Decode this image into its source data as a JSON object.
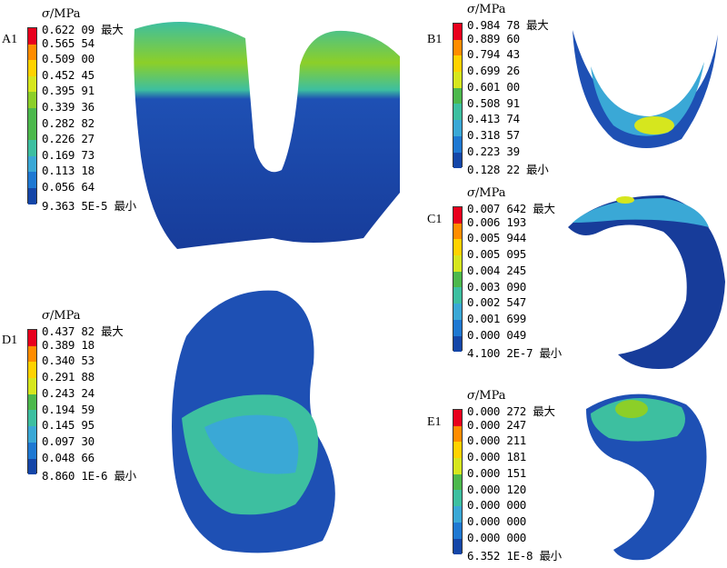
{
  "legend_title": {
    "symbol": "σ",
    "unit": "/MPa"
  },
  "colors": [
    "#e8001c",
    "#ff8c00",
    "#ffd200",
    "#d6e61e",
    "#8ccf28",
    "#4cb84c",
    "#3dbfa0",
    "#3aa8d6",
    "#1e78d2",
    "#1446a8"
  ],
  "panels": [
    {
      "label": "A1",
      "values": [
        "0.622 09 最大",
        "0.565 54",
        "0.509 00",
        "0.452 45",
        "0.395 91",
        "0.339 36",
        "0.282 82",
        "0.226 27",
        "0.169 73",
        "0.113 18",
        "0.056 64",
        "9.363 5E-5 最小"
      ]
    },
    {
      "label": "B1",
      "values": [
        "0.984 78 最大",
        "0.889 60",
        "0.794 43",
        "0.699 26",
        "0.601 00",
        "0.508 91",
        "0.413 74",
        "0.318 57",
        "0.223 39",
        "0.128 22 最小"
      ]
    },
    {
      "label": "C1",
      "values": [
        "0.007 642 最大",
        "0.006 193",
        "0.005 944",
        "0.005 095",
        "0.004 245",
        "0.003 090",
        "0.002 547",
        "0.001 699",
        "0.000 049",
        "4.100 2E-7 最小"
      ]
    },
    {
      "label": "D1",
      "values": [
        "0.437 82 最大",
        "0.389 18",
        "0.340 53",
        "0.291 88",
        "0.243 24",
        "0.194 59",
        "0.145 95",
        "0.097 30",
        "0.048 66",
        "8.860 1E-6 最小"
      ]
    },
    {
      "label": "E1",
      "values": [
        "0.000 272 最大",
        "0.000 247",
        "0.000 211",
        "0.000 181",
        "0.000 151",
        "0.000 120",
        "0.000 000",
        "0.000 000",
        "0.000 000",
        "6.352 1E-8 最小"
      ]
    }
  ]
}
